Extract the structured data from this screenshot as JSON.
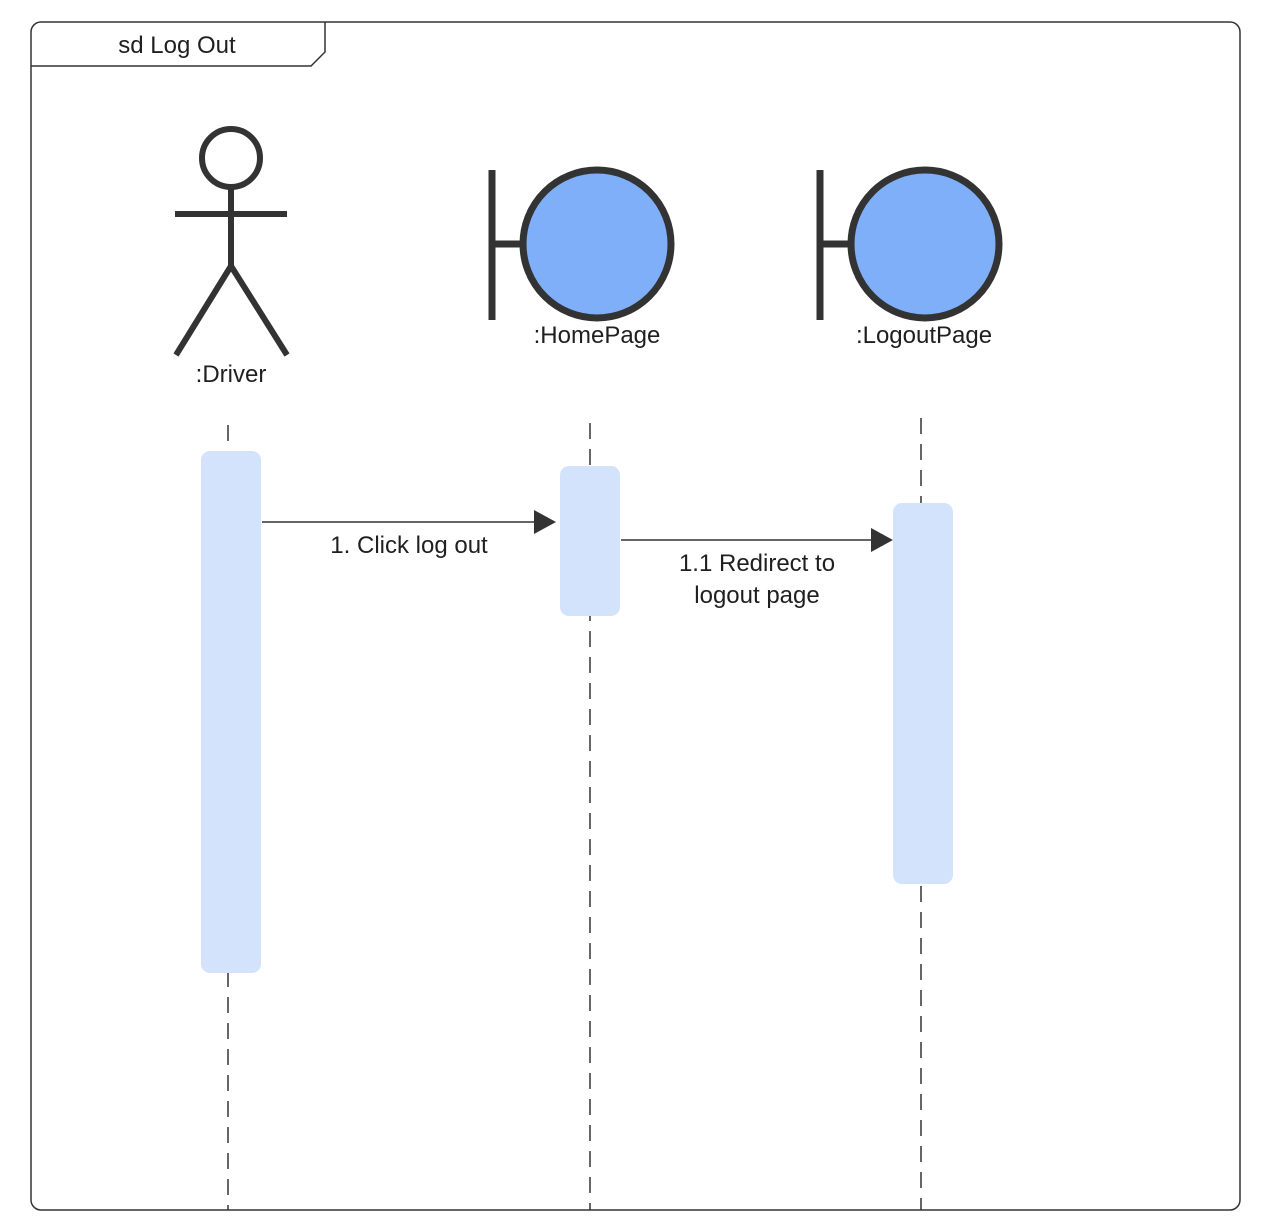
{
  "frame": {
    "title": "sd Log Out"
  },
  "colors": {
    "stroke": "#333333",
    "boundary_fill": "#7eaff8",
    "activation_fill": "#d4e3fc",
    "frame_stroke": "#333333"
  },
  "participants": [
    {
      "id": "driver",
      "kind": "actor",
      "label": ":Driver"
    },
    {
      "id": "homepage",
      "kind": "boundary",
      "label": ":HomePage"
    },
    {
      "id": "logoutpage",
      "kind": "boundary",
      "label": ":LogoutPage"
    }
  ],
  "messages": [
    {
      "from": "driver",
      "to": "homepage",
      "lines": [
        "1. Click log out"
      ]
    },
    {
      "from": "homepage",
      "to": "logoutpage",
      "lines": [
        "1.1 Redirect to",
        "logout page"
      ]
    }
  ]
}
